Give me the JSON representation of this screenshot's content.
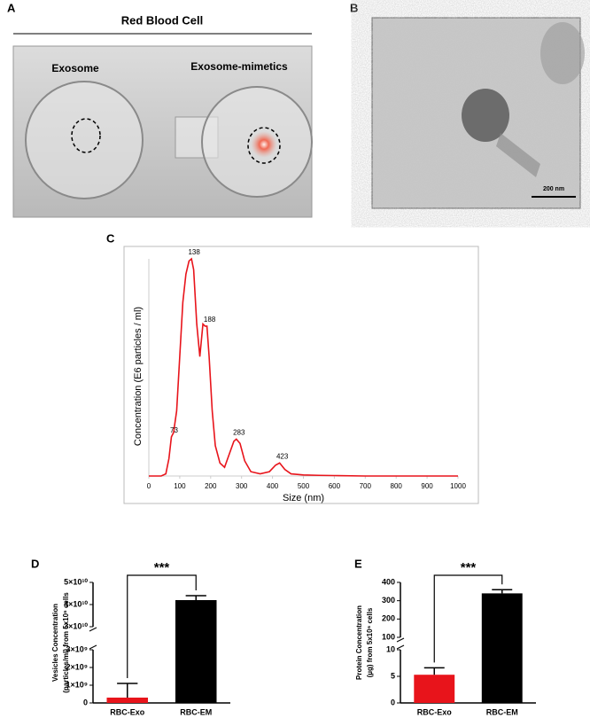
{
  "panel_labels": [
    "A",
    "B",
    "C",
    "D",
    "E"
  ],
  "photo_a": {
    "title": "Red Blood Cell",
    "labels": [
      "Exosome",
      "Exosome-mimetics"
    ]
  },
  "photo_b": {
    "scale_bar": "200 nm"
  },
  "chart_data": [
    {
      "type": "line",
      "xlabel": "Size (nm)",
      "ylabel": "Concentration (E6 particles / ml)",
      "color": "#e8141b",
      "x": [
        0,
        40,
        55,
        65,
        73,
        80,
        90,
        100,
        110,
        120,
        130,
        138,
        145,
        155,
        165,
        175,
        182,
        188,
        195,
        205,
        215,
        230,
        245,
        260,
        275,
        283,
        295,
        310,
        330,
        360,
        390,
        410,
        423,
        440,
        460,
        500,
        550,
        600,
        700,
        800,
        1000
      ],
      "values": [
        0,
        0,
        1,
        8,
        18,
        20,
        30,
        55,
        80,
        93,
        99,
        100,
        95,
        70,
        55,
        70,
        69,
        69,
        55,
        30,
        14,
        6,
        4,
        10,
        16,
        17,
        15,
        7,
        2,
        1,
        2,
        5,
        6,
        3,
        1,
        0.5,
        0.3,
        0.2,
        0,
        0,
        0
      ],
      "peak_labels": [
        73,
        138,
        188,
        283,
        423
      ],
      "xlim": [
        0,
        1000
      ],
      "xticks": [
        0,
        100,
        200,
        300,
        400,
        500,
        600,
        700,
        800,
        900,
        1000
      ],
      "ylim": [
        0,
        100
      ]
    },
    {
      "type": "bar",
      "ylabel": [
        "Vesicles Concentration",
        "(particles/ml) from 5x10⁶ cells"
      ],
      "categories": [
        "RBC-Exo",
        "RBC-EM"
      ],
      "values": [
        300000000,
        42000000000
      ],
      "errors": [
        800000000,
        2000000000
      ],
      "colors": [
        "#e8141b",
        "#000000"
      ],
      "annotation": "***",
      "ylim": [
        0,
        50000000000
      ],
      "axis_break": [
        3000000000,
        30000000000
      ],
      "yticks": [
        0,
        {
          "value": 1000000000,
          "label": "1×10⁹"
        },
        {
          "value": 2000000000,
          "label": "2×10⁹"
        },
        {
          "value": 3000000000,
          "label": "3×10⁹"
        },
        {
          "value": 30000000000,
          "label": "3×10¹⁰"
        },
        {
          "value": 40000000000,
          "label": "4×10¹⁰"
        },
        {
          "value": 50000000000,
          "label": "5×10¹⁰"
        }
      ]
    },
    {
      "type": "bar",
      "ylabel": [
        "Protein Concentration",
        "(µg) from 5x10⁶ cells"
      ],
      "categories": [
        "RBC-Exo",
        "RBC-EM"
      ],
      "values": [
        5.3,
        340
      ],
      "errors": [
        1.3,
        20
      ],
      "colors": [
        "#e8141b",
        "#000000"
      ],
      "annotation": "***",
      "ylim": [
        0,
        400
      ],
      "axis_break": [
        10,
        100
      ],
      "yticks": [
        0,
        5,
        10,
        100,
        200,
        300,
        400
      ]
    }
  ]
}
